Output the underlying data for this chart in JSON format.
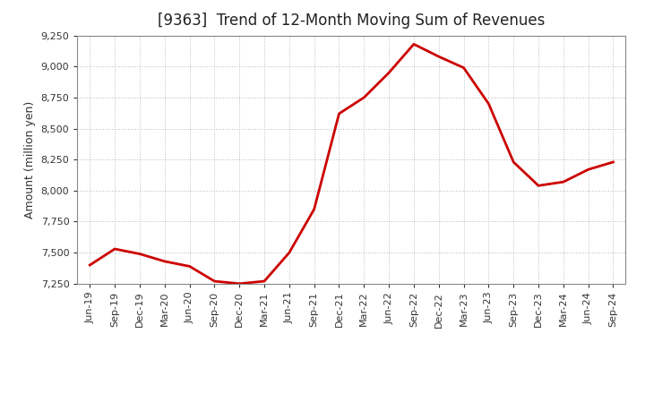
{
  "title": "[9363]  Trend of 12-Month Moving Sum of Revenues",
  "ylabel": "Amount (million yen)",
  "line_color": "#cc0000",
  "background_color": "#ffffff",
  "plot_bg_color": "#ffffff",
  "grid_color": "#bbbbbb",
  "spine_color": "#888888",
  "ylim": [
    7250,
    9250
  ],
  "yticks": [
    7250,
    7500,
    7750,
    8000,
    8250,
    8500,
    8750,
    9000,
    9250
  ],
  "x_labels": [
    "Jun-19",
    "Sep-19",
    "Dec-19",
    "Mar-20",
    "Jun-20",
    "Sep-20",
    "Dec-20",
    "Mar-21",
    "Jun-21",
    "Sep-21",
    "Dec-21",
    "Mar-22",
    "Jun-22",
    "Sep-22",
    "Dec-22",
    "Mar-23",
    "Jun-23",
    "Sep-23",
    "Dec-23",
    "Mar-24",
    "Jun-24",
    "Sep-24"
  ],
  "values": [
    7400,
    7530,
    7490,
    7430,
    7390,
    7270,
    7250,
    7270,
    7500,
    7850,
    8620,
    8750,
    8950,
    9180,
    9080,
    8990,
    8700,
    8230,
    8040,
    8070,
    8170,
    8230
  ],
  "title_fontsize": 12,
  "ylabel_fontsize": 9,
  "tick_fontsize": 8,
  "linewidth": 2.0
}
